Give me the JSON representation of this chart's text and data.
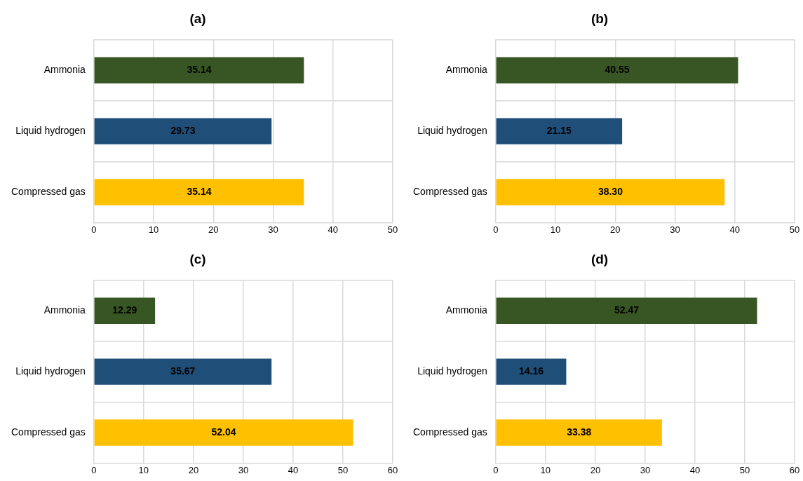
{
  "chart_data": [
    {
      "type": "bar",
      "title": "(a)",
      "orientation": "horizontal",
      "categories": [
        "Ammonia",
        "Liquid hydrogen",
        "Compressed gas"
      ],
      "values": [
        35.14,
        29.73,
        35.14
      ],
      "value_labels": [
        "35.14",
        "29.73",
        "35.14"
      ],
      "colors": [
        "#375623",
        "#1f4e79",
        "#ffc000"
      ],
      "xlim": [
        0,
        50
      ],
      "xticks": [
        0,
        10,
        20,
        30,
        40,
        50
      ],
      "grid": true,
      "legend": false
    },
    {
      "type": "bar",
      "title": "(b)",
      "orientation": "horizontal",
      "categories": [
        "Ammonia",
        "Liquid hydrogen",
        "Compressed gas"
      ],
      "values": [
        40.55,
        21.15,
        38.3
      ],
      "value_labels": [
        "40.55",
        "21.15",
        "38.30"
      ],
      "colors": [
        "#375623",
        "#1f4e79",
        "#ffc000"
      ],
      "xlim": [
        0,
        50
      ],
      "xticks": [
        0,
        10,
        20,
        30,
        40,
        50
      ],
      "grid": true,
      "legend": false
    },
    {
      "type": "bar",
      "title": "(c)",
      "orientation": "horizontal",
      "categories": [
        "Ammonia",
        "Liquid hydrogen",
        "Compressed gas"
      ],
      "values": [
        12.29,
        35.67,
        52.04
      ],
      "value_labels": [
        "12.29",
        "35.67",
        "52.04"
      ],
      "colors": [
        "#375623",
        "#1f4e79",
        "#ffc000"
      ],
      "xlim": [
        0,
        60
      ],
      "xticks": [
        0,
        10,
        20,
        30,
        40,
        50,
        60
      ],
      "grid": true,
      "legend": false
    },
    {
      "type": "bar",
      "title": "(d)",
      "orientation": "horizontal",
      "categories": [
        "Ammonia",
        "Liquid hydrogen",
        "Compressed gas"
      ],
      "values": [
        52.47,
        14.16,
        33.38
      ],
      "value_labels": [
        "52.47",
        "14.16",
        "33.38"
      ],
      "colors": [
        "#375623",
        "#1f4e79",
        "#ffc000"
      ],
      "xlim": [
        0,
        60
      ],
      "xticks": [
        0,
        10,
        20,
        30,
        40,
        50,
        60
      ],
      "grid": true,
      "legend": false
    }
  ]
}
